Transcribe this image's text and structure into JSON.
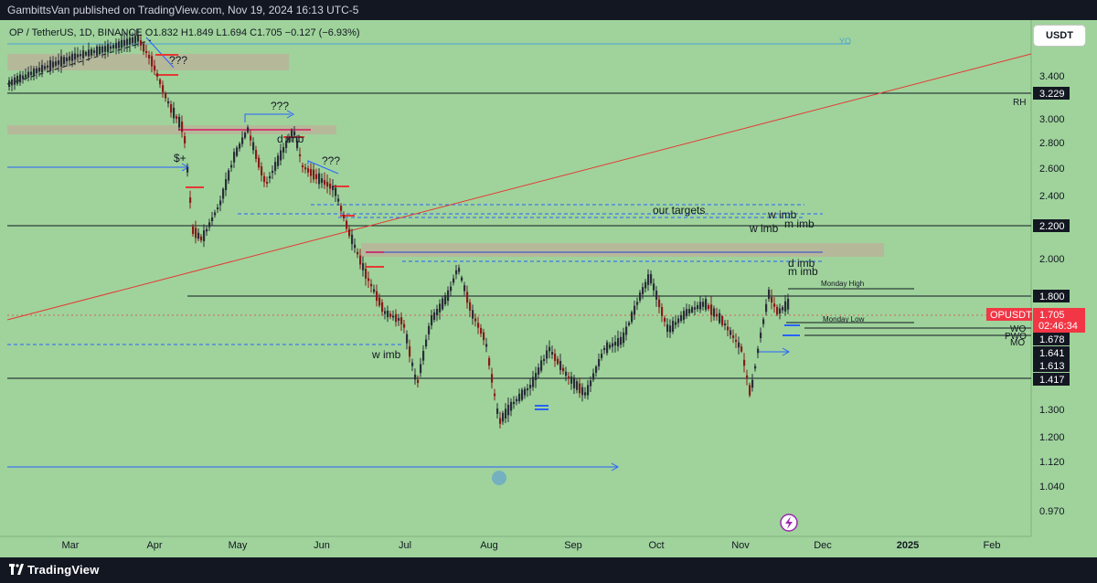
{
  "header": {
    "publish_text": "GambittsVan published on TradingView.com, Nov 19, 2024 16:13 UTC-5"
  },
  "legend": {
    "text": "OP / TetherUS, 1D, BINANCE  O1.832  H1.849  L1.694  C1.705  −0.127 (−6.93%)"
  },
  "currency_button": "USDT",
  "footer": {
    "brand": "TradingView"
  },
  "colors": {
    "background": "#9fd39b",
    "up_candle": "#2a2e39",
    "down_candle": "#8b1a1a",
    "price_label": "#f23645",
    "blue_line": "#2962ff",
    "red_line": "#e53935",
    "zone": "#b8b49a"
  },
  "chart_data": {
    "type": "candlestick",
    "symbol": "OPUSDT",
    "current_price": "1.705",
    "countdown": "02:46:34",
    "x_ticks": [
      "Mar",
      "Apr",
      "May",
      "Jun",
      "Jul",
      "Aug",
      "Sep",
      "Oct",
      "Nov",
      "Dec",
      "2025",
      "Feb"
    ],
    "y_ticks": [
      "3.400",
      "3.000",
      "2.800",
      "2.600",
      "2.400",
      "2.000",
      "1.300",
      "1.200",
      "1.120",
      "1.040",
      "0.970"
    ],
    "price_labels": [
      {
        "label": "RH",
        "value": "3.229"
      },
      {
        "label": "",
        "value": "2.200"
      },
      {
        "label": "",
        "value": "1.800"
      },
      {
        "label": "WO",
        "value": "1.678"
      },
      {
        "label": "PWO",
        "value": "1.641"
      },
      {
        "label": "MO",
        "value": "1.613"
      },
      {
        "label": "",
        "value": "1.417"
      }
    ],
    "ylim": [
      0.95,
      3.9
    ],
    "log_scale": true,
    "annotations": [
      "YO",
      "???",
      "???",
      "d imb",
      "???",
      "$+",
      "our targets",
      "w imb",
      "m imb",
      "w imb",
      "d imb",
      "m imb",
      "w imb",
      "Monday High",
      "Monday Low"
    ]
  }
}
